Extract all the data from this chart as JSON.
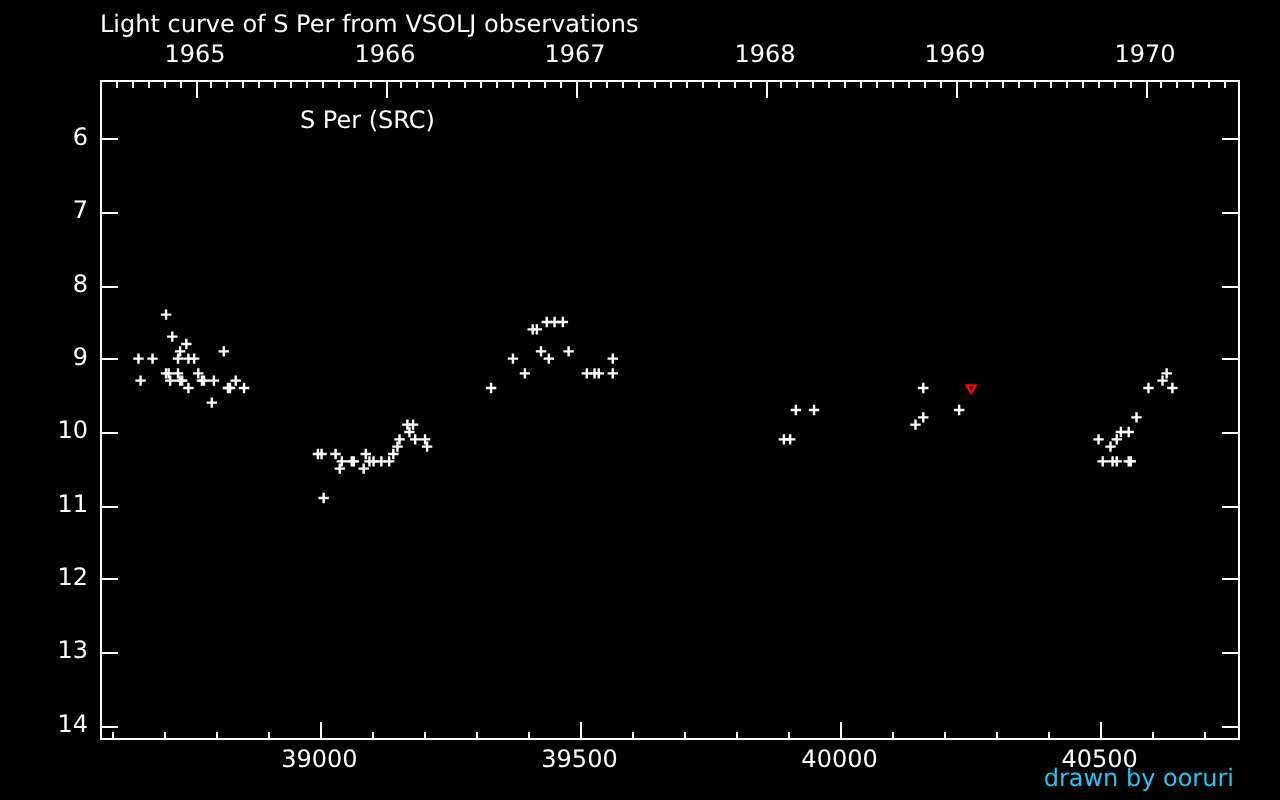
{
  "chart_data": {
    "type": "scatter",
    "title": "Light curve of S Per from VSOLJ observations",
    "annotations": [
      "S Per (SRC)",
      "drawn by ooruri"
    ],
    "marker": "cross",
    "xlim": [
      38578,
      40770
    ],
    "xticks": [
      {
        "value": 38600,
        "label": null
      },
      {
        "value": 38700,
        "label": null
      },
      {
        "value": 38800,
        "label": null
      },
      {
        "value": 38900,
        "label": null
      },
      39000,
      {
        "value": 39100,
        "label": null
      },
      {
        "value": 39200,
        "label": null
      },
      {
        "value": 39300,
        "label": null
      },
      {
        "value": 39400,
        "label": null
      },
      39500,
      {
        "value": 39600,
        "label": null
      },
      {
        "value": 39700,
        "label": null
      },
      {
        "value": 39800,
        "label": null
      },
      {
        "value": 39900,
        "label": null
      },
      40000,
      {
        "value": 40100,
        "label": null
      },
      {
        "value": 40200,
        "label": null
      },
      {
        "value": 40300,
        "label": null
      },
      {
        "value": 40400,
        "label": null
      },
      40500,
      {
        "value": 40600,
        "label": null
      },
      {
        "value": 40700,
        "label": null
      }
    ],
    "x2lim": [
      1964.5,
      1970.5
    ],
    "x2ticks": [
      {
        "value": 1964.5833,
        "label": null
      },
      {
        "value": 1964.6667,
        "label": null
      },
      {
        "value": 1964.75,
        "label": null
      },
      {
        "value": 1964.8333,
        "label": null
      },
      {
        "value": 1964.9167,
        "label": null
      },
      1965,
      {
        "value": 1965.0833,
        "label": null
      },
      {
        "value": 1965.1667,
        "label": null
      },
      {
        "value": 1965.25,
        "label": null
      },
      {
        "value": 1965.3333,
        "label": null
      },
      {
        "value": 1965.4167,
        "label": null
      },
      {
        "value": 1965.5,
        "label": null
      },
      {
        "value": 1965.5833,
        "label": null
      },
      {
        "value": 1965.6667,
        "label": null
      },
      {
        "value": 1965.75,
        "label": null
      },
      {
        "value": 1965.8333,
        "label": null
      },
      {
        "value": 1965.9167,
        "label": null
      },
      1966,
      {
        "value": 1966.0833,
        "label": null
      },
      {
        "value": 1966.1667,
        "label": null
      },
      {
        "value": 1966.25,
        "label": null
      },
      {
        "value": 1966.3333,
        "label": null
      },
      {
        "value": 1966.4167,
        "label": null
      },
      {
        "value": 1966.5,
        "label": null
      },
      {
        "value": 1966.5833,
        "label": null
      },
      {
        "value": 1966.6667,
        "label": null
      },
      {
        "value": 1966.75,
        "label": null
      },
      {
        "value": 1966.8333,
        "label": null
      },
      {
        "value": 1966.9167,
        "label": null
      },
      1967,
      {
        "value": 1967.0833,
        "label": null
      },
      {
        "value": 1967.1667,
        "label": null
      },
      {
        "value": 1967.25,
        "label": null
      },
      {
        "value": 1967.3333,
        "label": null
      },
      {
        "value": 1967.4167,
        "label": null
      },
      {
        "value": 1967.5,
        "label": null
      },
      {
        "value": 1967.5833,
        "label": null
      },
      {
        "value": 1967.6667,
        "label": null
      },
      {
        "value": 1967.75,
        "label": null
      },
      {
        "value": 1967.8333,
        "label": null
      },
      {
        "value": 1967.9167,
        "label": null
      },
      1968,
      {
        "value": 1968.0833,
        "label": null
      },
      {
        "value": 1968.1667,
        "label": null
      },
      {
        "value": 1968.25,
        "label": null
      },
      {
        "value": 1968.3333,
        "label": null
      },
      {
        "value": 1968.4167,
        "label": null
      },
      {
        "value": 1968.5,
        "label": null
      },
      {
        "value": 1968.5833,
        "label": null
      },
      {
        "value": 1968.6667,
        "label": null
      },
      {
        "value": 1968.75,
        "label": null
      },
      {
        "value": 1968.8333,
        "label": null
      },
      {
        "value": 1968.9167,
        "label": null
      },
      1969,
      {
        "value": 1969.0833,
        "label": null
      },
      {
        "value": 1969.1667,
        "label": null
      },
      {
        "value": 1969.25,
        "label": null
      },
      {
        "value": 1969.3333,
        "label": null
      },
      {
        "value": 1969.4167,
        "label": null
      },
      {
        "value": 1969.5,
        "label": null
      },
      {
        "value": 1969.5833,
        "label": null
      },
      {
        "value": 1969.6667,
        "label": null
      },
      {
        "value": 1969.75,
        "label": null
      },
      {
        "value": 1969.8333,
        "label": null
      },
      {
        "value": 1969.9167,
        "label": null
      },
      1970,
      {
        "value": 1970.0833,
        "label": null
      },
      {
        "value": 1970.1667,
        "label": null
      },
      {
        "value": 1970.25,
        "label": null
      },
      {
        "value": 1970.3333,
        "label": null
      },
      {
        "value": 1970.4167,
        "label": null
      }
    ],
    "ylim": [
      14.2,
      5.2
    ],
    "yticks": [
      6,
      7,
      8,
      9,
      10,
      11,
      12,
      13,
      14
    ],
    "series": [
      {
        "color": "#ffffff",
        "x": [
          38652,
          38656,
          38679,
          38705,
          38705,
          38710,
          38713,
          38717,
          38728,
          38728,
          38732,
          38732,
          38736,
          38744,
          38748,
          38748,
          38759,
          38767,
          38774,
          38778,
          38793,
          38797,
          38816,
          38824,
          38828,
          38839,
          38855,
          38997,
          39004,
          39008,
          39031,
          39039,
          39043,
          39062,
          39066,
          39085,
          39089,
          39096,
          39104,
          39119,
          39134,
          39142,
          39150,
          39154,
          39169,
          39173,
          39180,
          39184,
          39203,
          39207,
          39330,
          39372,
          39395,
          39410,
          39418,
          39426,
          39437,
          39441,
          39452,
          39468,
          39479,
          39514,
          39529,
          39537,
          39564,
          39564,
          39893,
          39905,
          39916,
          39951,
          40146,
          40161,
          40161,
          40230,
          40498,
          40506,
          40521,
          40525,
          40533,
          40533,
          40541,
          40556,
          40556,
          40560,
          40571,
          40594,
          40621,
          40629,
          40640
        ],
        "values": [
          9.0,
          9.3,
          9.0,
          8.4,
          9.2,
          9.2,
          9.3,
          8.7,
          9.0,
          9.2,
          8.9,
          9.3,
          9.3,
          8.8,
          9.0,
          9.4,
          9.0,
          9.2,
          9.3,
          9.3,
          9.6,
          9.3,
          8.9,
          9.4,
          9.4,
          9.3,
          9.4,
          10.3,
          10.3,
          10.9,
          10.3,
          10.5,
          10.4,
          10.4,
          10.4,
          10.5,
          10.3,
          10.4,
          10.4,
          10.4,
          10.4,
          10.3,
          10.2,
          10.1,
          9.9,
          10.0,
          9.9,
          10.1,
          10.1,
          10.2,
          9.4,
          9.0,
          9.2,
          8.6,
          8.6,
          8.9,
          8.5,
          9.0,
          8.5,
          8.5,
          8.9,
          9.2,
          9.2,
          9.2,
          9.0,
          9.2,
          10.1,
          10.1,
          9.7,
          9.7,
          9.9,
          9.4,
          9.8,
          9.7,
          10.1,
          10.4,
          10.2,
          10.4,
          10.1,
          10.4,
          10.0,
          10.0,
          10.4,
          10.4,
          9.8,
          9.4,
          9.3,
          9.2,
          9.4
        ]
      },
      {
        "color": "#ff0000",
        "marker": "triangle",
        "x": [
          40253
        ],
        "values": [
          9.4
        ]
      }
    ]
  }
}
